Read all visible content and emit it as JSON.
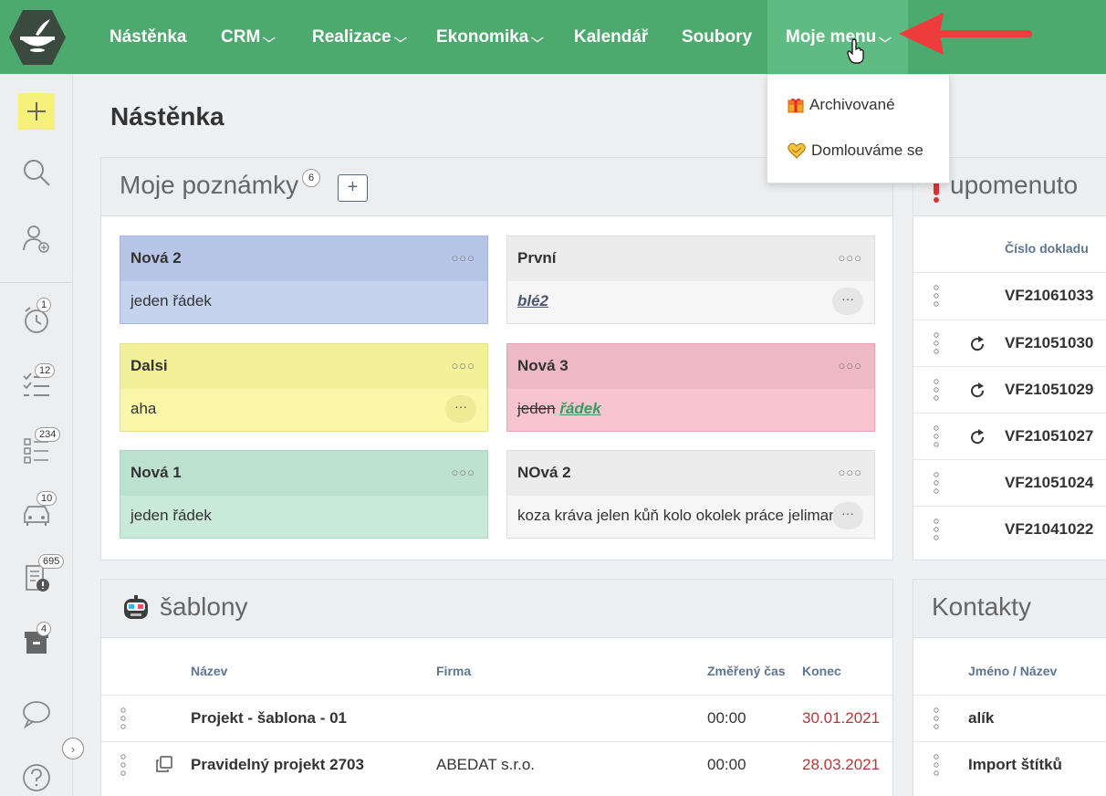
{
  "nav": {
    "items": [
      {
        "label": "Nástěnka",
        "has_chevron": false
      },
      {
        "label": "CRM",
        "has_chevron": true
      },
      {
        "label": "Realizace",
        "has_chevron": true
      },
      {
        "label": "Ekonomika",
        "has_chevron": true
      },
      {
        "label": "Kalendář",
        "has_chevron": false
      },
      {
        "label": "Soubory",
        "has_chevron": false
      },
      {
        "label": "Moje menu",
        "has_chevron": true,
        "active": true
      }
    ],
    "chevron": "⌄"
  },
  "dropdown": {
    "items": [
      {
        "label": "Archivované",
        "icon": "gift-icon"
      },
      {
        "label": "Domlouváme se",
        "icon": "heart-icon"
      }
    ]
  },
  "sidebar": {
    "badges": [
      "1",
      "12",
      "234",
      "10",
      "695",
      "4"
    ]
  },
  "page": {
    "title": "Nástěnka"
  },
  "notes": {
    "title": "Moje poznámky",
    "count": "6",
    "add_label": "+",
    "dots": "○○○",
    "more": "···",
    "items": [
      {
        "title": "Nová 2",
        "body": "jeden řádek"
      },
      {
        "title": "První",
        "body": "blé2"
      },
      {
        "title": "Dalsi",
        "body": "aha"
      },
      {
        "title": "Nová 3",
        "body_strike": "jeden",
        "body_link": "řádek"
      },
      {
        "title": "Nová 1",
        "body": "jeden řádek"
      },
      {
        "title": "NOvá 2",
        "body": "koza kráva jelen kůň kolo okolek práce jelimar"
      }
    ]
  },
  "reminders": {
    "title": "upomenuto",
    "column": "Číslo dokladu",
    "rows": [
      {
        "number": "VF21061033",
        "repeat": false
      },
      {
        "number": "VF21051030",
        "repeat": true
      },
      {
        "number": "VF21051029",
        "repeat": true
      },
      {
        "number": "VF21051027",
        "repeat": true
      },
      {
        "number": "VF21051024",
        "repeat": false
      },
      {
        "number": "VF21041022",
        "repeat": false
      }
    ]
  },
  "templates": {
    "title": "šablony",
    "columns": {
      "name": "Název",
      "company": "Firma",
      "time": "Změřený čas",
      "end": "Konec"
    },
    "rows": [
      {
        "name": "Projekt - šablona - 01",
        "company": "",
        "time": "00:00",
        "end": "30.01.2021",
        "copy": false
      },
      {
        "name": "Pravidelný projekt 2703",
        "company": "ABEDAT s.r.o.",
        "time": "00:00",
        "end": "28.03.2021",
        "copy": true
      }
    ]
  },
  "contacts": {
    "title": "Kontakty",
    "column": "Jméno / Název",
    "rows": [
      {
        "name": "alík"
      },
      {
        "name": "Import štítků"
      }
    ]
  },
  "colors": {
    "topbar": "#4caa6e",
    "note_blue": "#c5d3ef",
    "note_yellow": "#fbf7a8",
    "note_pink": "#f8c4d0",
    "note_green": "#c9e9d9",
    "date_red": "#b03a3a"
  }
}
